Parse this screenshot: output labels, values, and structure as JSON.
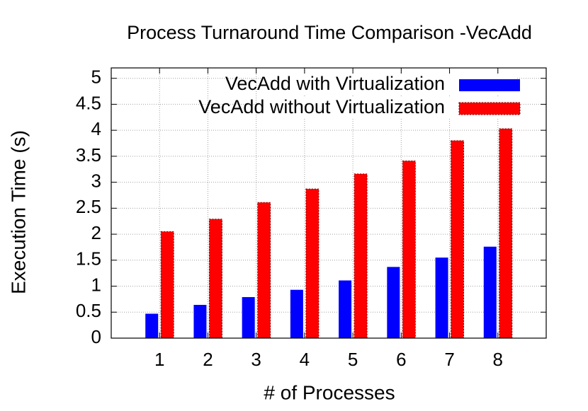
{
  "chart_data": {
    "type": "bar",
    "title": "Process Turnaround Time Comparison -VecAdd",
    "x_label": "# of Processes",
    "y_label": "Execution Time (s)",
    "categories": [
      "1",
      "2",
      "3",
      "4",
      "5",
      "6",
      "7",
      "8"
    ],
    "series": [
      {
        "name": "VecAdd with Virtualization",
        "color": "#0000ff",
        "values": [
          0.47,
          0.64,
          0.79,
          0.93,
          1.11,
          1.37,
          1.55,
          1.76
        ]
      },
      {
        "name": "VecAdd without Virtualization",
        "color": "#ff0000",
        "values": [
          2.05,
          2.29,
          2.61,
          2.87,
          3.16,
          3.41,
          3.8,
          4.03
        ]
      }
    ],
    "ylim": [
      0,
      5.2
    ],
    "yticks": [
      0,
      0.5,
      1,
      1.5,
      2,
      2.5,
      3,
      3.5,
      4,
      4.5,
      5
    ],
    "grid": true,
    "legend": "top-right"
  }
}
